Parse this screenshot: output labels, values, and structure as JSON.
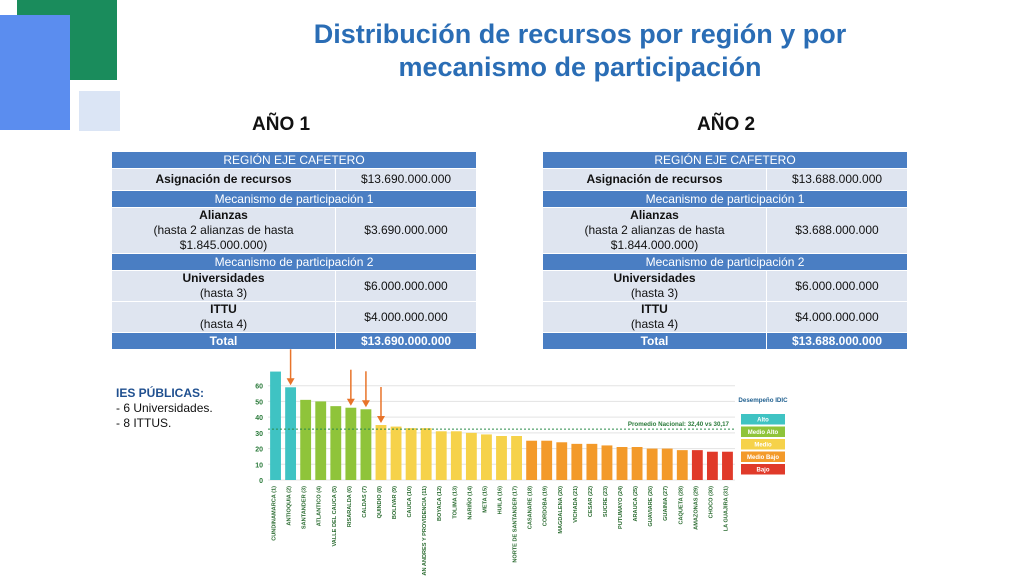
{
  "title_line1": "Distribución de recursos por región y por",
  "title_line2": "mecanismo de participación",
  "years": [
    {
      "label": "AÑO 1",
      "table": {
        "region": "REGIÓN EJE CAFETERO",
        "asignacion_label": "Asignación de recursos",
        "asignacion_value": "$13.690.000.000",
        "mec1_label": "Mecanismo de participación 1",
        "alianzas_title": "Alianzas",
        "alianzas_line2": "(hasta 2 alianzas de hasta",
        "alianzas_line3": "$1.845.000.000)",
        "alianzas_value": "$3.690.000.000",
        "mec2_label": "Mecanismo de participación 2",
        "univ_title": "Universidades",
        "univ_sub": "(hasta 3)",
        "univ_value": "$6.000.000.000",
        "ittu_title": "ITTU",
        "ittu_sub": "(hasta 4)",
        "ittu_value": "$4.000.000.000",
        "total_label": "Total",
        "total_value": "$13.690.000.000"
      }
    },
    {
      "label": "AÑO 2",
      "table": {
        "region": "REGIÓN EJE CAFETERO",
        "asignacion_label": "Asignación de recursos",
        "asignacion_value": "$13.688.000.000",
        "mec1_label": "Mecanismo de participación 1",
        "alianzas_title": "Alianzas",
        "alianzas_line2": "(hasta 2 alianzas de hasta",
        "alianzas_line3": "$1.844.000.000)",
        "alianzas_value": "$3.688.000.000",
        "mec2_label": "Mecanismo de participación 2",
        "univ_title": "Universidades",
        "univ_sub": "(hasta 3)",
        "univ_value": "$6.000.000.000",
        "ittu_title": "ITTU",
        "ittu_sub": "(hasta 4)",
        "ittu_value": "$4.000.000.000",
        "total_label": "Total",
        "total_value": "$13.688.000.000"
      }
    }
  ],
  "ies": {
    "title": "IES PÚBLICAS:",
    "items": [
      "- 6 Universidades.",
      "- 8 ITTUS."
    ]
  },
  "colors": {
    "title": "#2a6db5",
    "table_header": "#4a7ec3",
    "table_row": "#dfe5f0",
    "deco_green": "#1a8c5c",
    "deco_blue": "#5b8def",
    "deco_light": "#dbe5f5",
    "arrow": "#e8742a"
  },
  "chart_data": {
    "type": "bar",
    "ylim": [
      0,
      70
    ],
    "yticks": [
      0,
      10,
      20,
      30,
      40,
      50,
      60
    ],
    "grid": true,
    "categories": [
      "CUNDINAMARCA (1)",
      "ANTIOQUIA (2)",
      "SANTANDER (3)",
      "ATLANTICO (4)",
      "VALLE DEL CAUCA (5)",
      "RISARALDA (6)",
      "CALDAS (7)",
      "QUINDIO (8)",
      "BOLIVAR (9)",
      "CAUCA (10)",
      "SAN ANDRES Y PROVIDENCIA (11)",
      "BOYACA (12)",
      "TOLIMA (13)",
      "NARIÑO (14)",
      "META (15)",
      "HUILA (16)",
      "NORTE DE SANTANDER (17)",
      "CASANARE (18)",
      "CORDOBA (19)",
      "MAGDALENA (20)",
      "VICHADA (21)",
      "CESAR (22)",
      "SUCRE (23)",
      "PUTUMAYO (24)",
      "ARAUCA (25)",
      "GUAVIARE (26)",
      "GUAINIA (27)",
      "CAQUETA (28)",
      "AMAZONAS (29)",
      "CHOCO (30)",
      "LA GUAJIRA (31)"
    ],
    "values": [
      69,
      59,
      51,
      50,
      47,
      46,
      45,
      35,
      34,
      33,
      33,
      31,
      31,
      30,
      29,
      28,
      28,
      25,
      25,
      24,
      23,
      23,
      22,
      21,
      21,
      20,
      20,
      19,
      19,
      18,
      18
    ],
    "bar_levels": [
      "Alto",
      "Alto",
      "Medio Alto",
      "Medio Alto",
      "Medio Alto",
      "Medio Alto",
      "Medio Alto",
      "Medio",
      "Medio",
      "Medio",
      "Medio",
      "Medio",
      "Medio",
      "Medio",
      "Medio",
      "Medio",
      "Medio",
      "Medio Bajo",
      "Medio Bajo",
      "Medio Bajo",
      "Medio Bajo",
      "Medio Bajo",
      "Medio Bajo",
      "Medio Bajo",
      "Medio Bajo",
      "Medio Bajo",
      "Medio Bajo",
      "Medio Bajo",
      "Bajo",
      "Bajo",
      "Bajo"
    ],
    "level_colors": {
      "Alto": "#3fc3c3",
      "Medio Alto": "#8fc43a",
      "Medio": "#f6d24a",
      "Medio Bajo": "#f39a2a",
      "Bajo": "#e03a2a"
    },
    "highlighted_indices": [
      1,
      5,
      6,
      7
    ],
    "average_line": {
      "value": 32.4,
      "label": "Promedio Nacional: 32,40 vs 30,17"
    },
    "legend": {
      "title": "Desempeño IDIC",
      "items": [
        "Alto",
        "Medio Alto",
        "Medio",
        "Medio Bajo",
        "Bajo"
      ]
    }
  }
}
